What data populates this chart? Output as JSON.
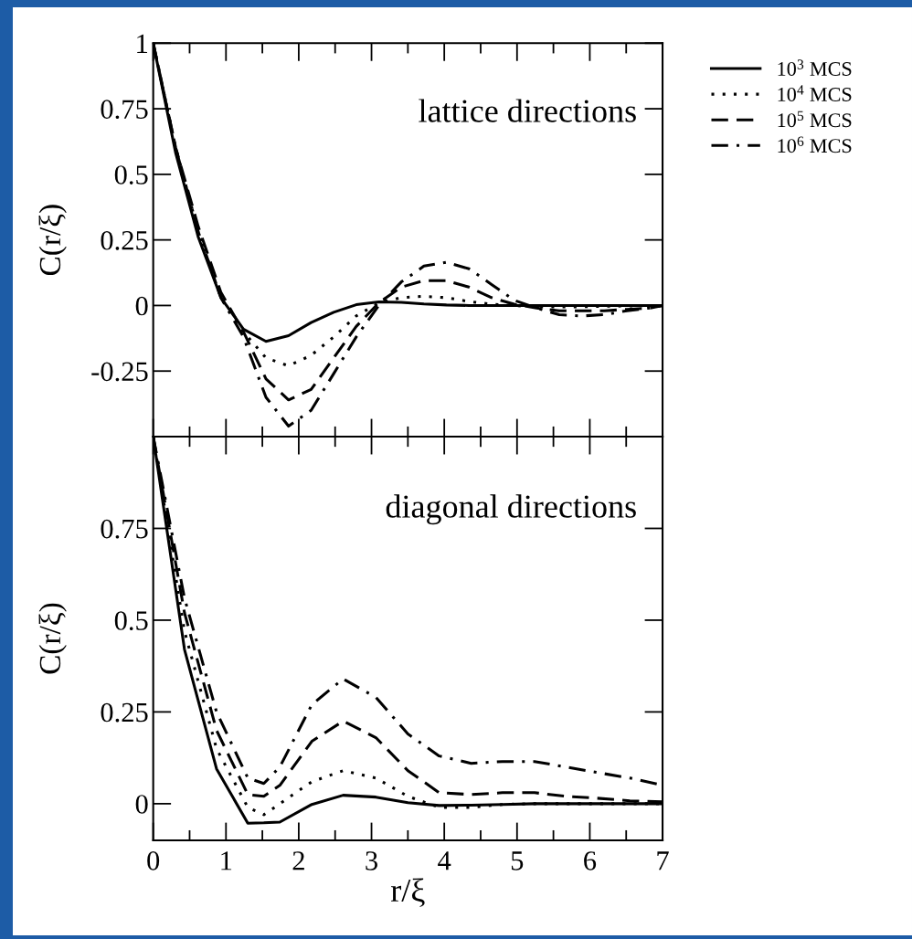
{
  "chart_data": [
    {
      "type": "line",
      "ylabel": "C(r/ξ)",
      "annotations": [
        "lattice directions"
      ],
      "legend": "right",
      "tick_labels": "y",
      "x": [
        0,
        0.31,
        0.62,
        0.93,
        1.24,
        1.55,
        1.86,
        2.17,
        2.48,
        2.79,
        3.1,
        3.41,
        3.72,
        4.03,
        4.34,
        4.65,
        4.96,
        5.27,
        5.58,
        5.89,
        6.2,
        6.51,
        6.82,
        7
      ],
      "xlim": [
        0,
        7
      ],
      "ylim": [
        -0.5,
        1
      ],
      "xticks": [
        0,
        {
          "value": 0.5,
          "label": null
        },
        1,
        {
          "value": 1.5,
          "label": null
        },
        2,
        {
          "value": 2.5,
          "label": null
        },
        3,
        {
          "value": 3.5,
          "label": null
        },
        4,
        {
          "value": 4.5,
          "label": null
        },
        5,
        {
          "value": 5.5,
          "label": null
        },
        6,
        {
          "value": 6.5,
          "label": null
        },
        7
      ],
      "yticks": [
        -0.25,
        0,
        0.25,
        0.5,
        0.75,
        1
      ],
      "series": [
        {
          "name": "10$^{3}$ MCS",
          "color": "#000000",
          "line_style": "solid",
          "values": [
            1,
            0.58,
            0.26,
            0.03,
            -0.09,
            -0.137,
            -0.115,
            -0.065,
            -0.026,
            0.003,
            0.014,
            0.012,
            0.006,
            0.002,
            0,
            0,
            0,
            0,
            0,
            0,
            0,
            0,
            0,
            0
          ]
        },
        {
          "name": "10$^{4}$ MCS",
          "color": "#000000",
          "line_style": "dotted",
          "values": [
            1,
            0.6,
            0.28,
            0.03,
            -0.1,
            -0.2,
            -0.23,
            -0.19,
            -0.12,
            -0.04,
            0.01,
            0.03,
            0.035,
            0.03,
            0.015,
            0.005,
            0,
            -0.005,
            -0.005,
            -0.005,
            -0.003,
            -0.002,
            0,
            0
          ]
        },
        {
          "name": "10$^{5}$ MCS",
          "color": "#000000",
          "line_style": "dashed",
          "values": [
            1,
            0.6,
            0.3,
            0.05,
            -0.1,
            -0.28,
            -0.36,
            -0.32,
            -0.2,
            -0.08,
            0.01,
            0.07,
            0.095,
            0.095,
            0.07,
            0.03,
            0.005,
            -0.01,
            -0.02,
            -0.02,
            -0.02,
            -0.015,
            -0.01,
            0
          ]
        },
        {
          "name": "10$^{6}$ MCS",
          "color": "#000000",
          "line_style": "dashdot",
          "values": [
            1,
            0.6,
            0.28,
            0.03,
            -0.12,
            -0.35,
            -0.46,
            -0.4,
            -0.26,
            -0.12,
            0,
            0.09,
            0.15,
            0.165,
            0.14,
            0.08,
            0.02,
            -0.01,
            -0.035,
            -0.04,
            -0.035,
            -0.02,
            -0.01,
            0
          ]
        }
      ]
    },
    {
      "type": "line",
      "xlabel": "r/ξ",
      "ylabel": "C(r/ξ)",
      "annotations": [
        "diagonal directions"
      ],
      "x": [
        0,
        0.43,
        0.87,
        1.3,
        1.52,
        1.74,
        2.18,
        2.61,
        3.06,
        3.5,
        3.93,
        4.37,
        4.8,
        5.24,
        5.67,
        6.1,
        6.55,
        7
      ],
      "xlim": [
        0,
        7
      ],
      "ylim": [
        -0.1,
        1
      ],
      "xticks": [
        0,
        {
          "value": 0.5,
          "label": null
        },
        1,
        {
          "value": 1.5,
          "label": null
        },
        2,
        {
          "value": 2.5,
          "label": null
        },
        3,
        {
          "value": 3.5,
          "label": null
        },
        4,
        {
          "value": 4.5,
          "label": null
        },
        5,
        {
          "value": 5.5,
          "label": null
        },
        6,
        {
          "value": 6.5,
          "label": null
        },
        7
      ],
      "yticks": [
        0,
        0.25,
        0.5,
        0.75
      ],
      "series": [
        {
          "color": "#000000",
          "line_style": "solid",
          "values": [
            1,
            0.42,
            0.095,
            -0.053,
            -0.052,
            -0.05,
            -0.002,
            0.023,
            0.018,
            0.003,
            -0.005,
            -0.004,
            -0.002,
            0,
            0,
            0,
            0,
            0
          ]
        },
        {
          "color": "#000000",
          "line_style": "dotted",
          "values": [
            1,
            0.47,
            0.15,
            -0.01,
            -0.03,
            0,
            0.06,
            0.09,
            0.07,
            0.02,
            -0.01,
            -0.01,
            -0.002,
            0,
            0,
            0,
            0,
            0
          ]
        },
        {
          "color": "#000000",
          "line_style": "dashed",
          "values": [
            1,
            0.52,
            0.2,
            0.025,
            0.02,
            0.05,
            0.17,
            0.225,
            0.18,
            0.09,
            0.03,
            0.025,
            0.03,
            0.03,
            0.02,
            0.015,
            0.008,
            0.005
          ]
        },
        {
          "color": "#000000",
          "line_style": "dashdot",
          "values": [
            1,
            0.56,
            0.25,
            0.07,
            0.055,
            0.1,
            0.27,
            0.34,
            0.29,
            0.19,
            0.13,
            0.11,
            0.115,
            0.115,
            0.1,
            0.085,
            0.07,
            0.05
          ]
        }
      ]
    }
  ]
}
